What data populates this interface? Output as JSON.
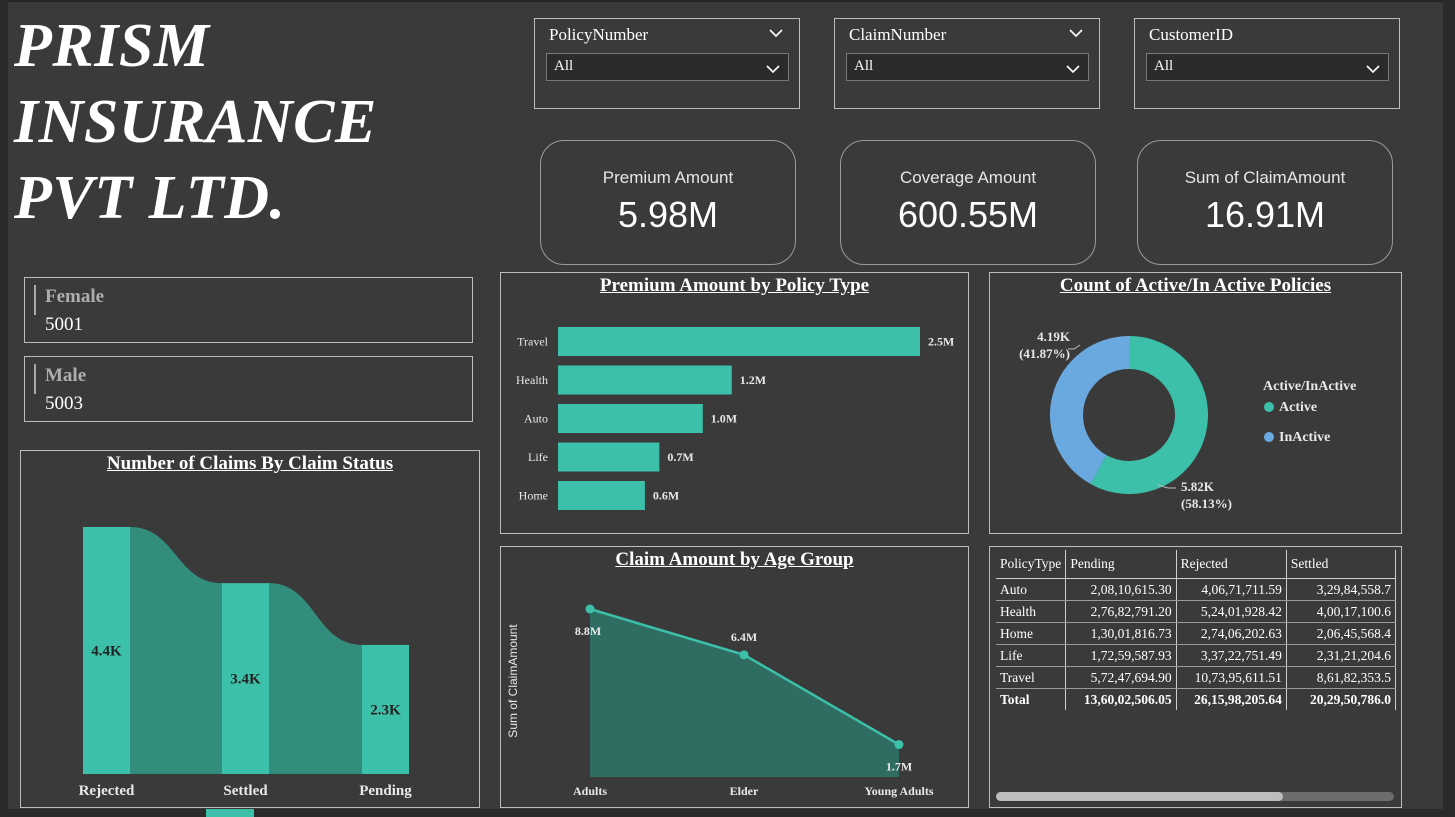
{
  "title_lines": [
    "PRISM",
    "INSURANCE",
    "PVT LTD."
  ],
  "colors": {
    "teal": "#3cc0a9",
    "blue": "#6aa9e0",
    "background": "#3a3a3a"
  },
  "slicers": [
    {
      "label": "PolicyNumber",
      "value": "All"
    },
    {
      "label": "ClaimNumber",
      "value": "All"
    },
    {
      "label": "CustomerID",
      "value": "All"
    }
  ],
  "kpis": [
    {
      "label": "Premium Amount",
      "value": "5.98M"
    },
    {
      "label": "Coverage Amount",
      "value": "600.55M"
    },
    {
      "label": "Sum of ClaimAmount",
      "value": "16.91M"
    }
  ],
  "gender_cards": [
    {
      "label": "Female",
      "value": "5001"
    },
    {
      "label": "Male",
      "value": "5003"
    }
  ],
  "charts": {
    "premium_by_policy": {
      "title": "Premium Amount by Policy Type",
      "type": "bar",
      "orientation": "horizontal",
      "categories": [
        "Travel",
        "Health",
        "Auto",
        "Life",
        "Home"
      ],
      "values": [
        2.5,
        1.2,
        1.0,
        0.7,
        0.6
      ],
      "labels": [
        "2.5M",
        "1.2M",
        "1.0M",
        "0.7M",
        "0.6M"
      ],
      "unit": "M",
      "xlim": [
        0,
        2.5
      ]
    },
    "active_policies": {
      "title": "Count of Active/In Active Policies",
      "type": "pie",
      "donut": true,
      "legend_title": "Active/InActive",
      "legend_position": "right",
      "slices": [
        {
          "name": "Active",
          "value": 5.82,
          "label": "5.82K",
          "pct_label": "(58.13%)",
          "color": "#3cc0a9"
        },
        {
          "name": "InActive",
          "value": 4.19,
          "label": "4.19K",
          "pct_label": "(41.87%)",
          "color": "#6aa9e0"
        }
      ]
    },
    "claims_by_status": {
      "title": "Number of Claims By Claim Status",
      "type": "bar",
      "categories": [
        "Rejected",
        "Settled",
        "Pending"
      ],
      "values": [
        4.4,
        3.4,
        2.3
      ],
      "labels": [
        "4.4K",
        "3.4K",
        "2.3K"
      ],
      "unit": "K",
      "ylim": [
        0,
        4.4
      ]
    },
    "claim_by_age": {
      "title": "Claim Amount by Age Group",
      "type": "area",
      "ylabel": "Sum of ClaimAmount",
      "categories": [
        "Adults",
        "Elder",
        "Young Adults"
      ],
      "values": [
        8.8,
        6.4,
        1.7
      ],
      "labels": [
        "8.8M",
        "6.4M",
        "1.7M"
      ],
      "unit": "M",
      "ylim": [
        0,
        8.8
      ]
    }
  },
  "matrix": {
    "columns": [
      "PolicyType",
      "Pending",
      "Rejected",
      "Settled"
    ],
    "rows": [
      [
        "Auto",
        "2,08,10,615.30",
        "4,06,71,711.59",
        "3,29,84,558.7"
      ],
      [
        "Health",
        "2,76,82,791.20",
        "5,24,01,928.42",
        "4,00,17,100.6"
      ],
      [
        "Home",
        "1,30,01,816.73",
        "2,74,06,202.63",
        "2,06,45,568.4"
      ],
      [
        "Life",
        "1,72,59,587.93",
        "3,37,22,751.49",
        "2,31,21,204.6"
      ],
      [
        "Travel",
        "5,72,47,694.90",
        "10,73,95,611.51",
        "8,61,82,353.5"
      ]
    ],
    "total": [
      "Total",
      "13,60,02,506.05",
      "26,15,98,205.64",
      "20,29,50,786.0"
    ],
    "scroll_fraction": 0.72
  }
}
